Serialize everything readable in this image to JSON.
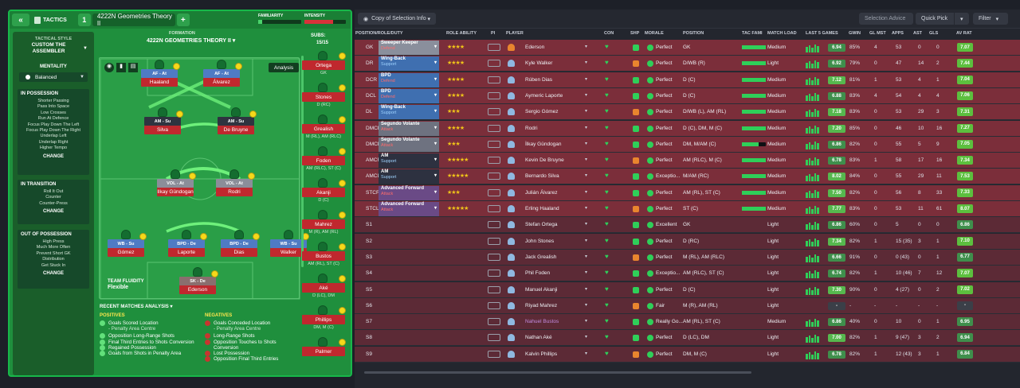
{
  "tactics": {
    "back_label": "«",
    "title": "TACTICS",
    "slot": "1",
    "formation_name": "4222N Geometries Theory II",
    "add_label": "+",
    "familiarity_label": "FAMILIARITY",
    "intensity_label": "INTENSITY",
    "style_label": "TACTICAL STYLE",
    "style_name": "CUSTOM THE ASSEMBLER",
    "mentality_label": "MENTALITY",
    "mentality_value": "Balanced",
    "in_possession": {
      "title": "IN POSSESSION",
      "items": [
        "Shorter Passing",
        "Pass Into Space",
        "Low Crosses",
        "Run At Defence",
        "Focus Play Down The Left",
        "Focus Play Down The Right",
        "Underlap Left",
        "Underlap Right",
        "Higher Tempo"
      ],
      "change": "CHANGE"
    },
    "in_transition": {
      "title": "IN TRANSITION",
      "items": [
        "Roll It Out",
        "Counter",
        "Counter-Press"
      ],
      "change": "CHANGE"
    },
    "out_of_possession": {
      "title": "OUT OF POSSESSION",
      "items": [
        "High Press",
        "Much More Often",
        "Prevent Short GK",
        "Distribution",
        "Get Stuck In"
      ],
      "change": "CHANGE"
    },
    "formation_label": "FORMATION",
    "formation_title": "4222N GEOMETRIES THEORY II",
    "analysis_label": "Analysis",
    "subs_label": "SUBS:",
    "subs_count": "15/15",
    "team_fluidity_label": "TEAM FLUIDITY",
    "team_fluidity_value": "Flexible",
    "pitch_players": [
      {
        "role": "AF - At",
        "name": "Haaland",
        "color": "#4f7bc4"
      },
      {
        "role": "AF - At",
        "name": "Álvarez",
        "color": "#4f7bc4"
      },
      {
        "role": "AM - Su",
        "name": "Silva",
        "color": "#2f3440"
      },
      {
        "role": "AM - Su",
        "name": "De Bruyne",
        "color": "#2f3440"
      },
      {
        "role": "VOL - At",
        "name": "Ilkay Gündogan",
        "color": "#8b8e99"
      },
      {
        "role": "VOL - At",
        "name": "Rodri",
        "color": "#8b8e99"
      },
      {
        "role": "WB - Su",
        "name": "Gómez",
        "color": "#4f7bc4"
      },
      {
        "role": "BPD - De",
        "name": "Laporte",
        "color": "#4f7bc4"
      },
      {
        "role": "BPD - De",
        "name": "Dias",
        "color": "#4f7bc4"
      },
      {
        "role": "WB - Su",
        "name": "Walker",
        "color": "#4f7bc4"
      },
      {
        "role": "SK - De",
        "name": "Ederson",
        "color": "#8a6e6e"
      }
    ],
    "subs": [
      {
        "name": "Ortega",
        "pos": "GK"
      },
      {
        "name": "Stones",
        "pos": "D (RC)"
      },
      {
        "name": "Grealish",
        "pos": "M (RL), AM (RLC)"
      },
      {
        "name": "Foden",
        "pos": "AM (RLC), ST (C)"
      },
      {
        "name": "Akanji",
        "pos": "D (C)"
      },
      {
        "name": "Mahrez",
        "pos": "M (R), AM (RL)"
      },
      {
        "name": "Bustos",
        "pos": "AM (RL), ST (C)"
      },
      {
        "name": "Aké",
        "pos": "D (LC), DM"
      },
      {
        "name": "Phillips",
        "pos": "DM, M (C)"
      },
      {
        "name": "Palmer",
        "pos": ""
      }
    ],
    "analysis": {
      "title": "RECENT MATCHES ANALYSIS",
      "positives_label": "POSITIVES",
      "negatives_label": "NEGATIVES",
      "positives": [
        "Goals Scored Location",
        "- Penalty Area Centre",
        "Opposition Long-Range Shots",
        "Final Third Entries to Shots Conversion",
        "Regained Possession",
        "Goals from Shots in Penalty Area"
      ],
      "negatives": [
        "Goals Conceded Location",
        "- Penalty Area Centre",
        "Long-Range Shots",
        "Opposition Touches to Shots Conversion",
        "Lost Possession",
        "Opposition Final Third Entries"
      ]
    }
  },
  "selection": {
    "view_label": "Copy of Selection Info",
    "advice_label": "Selection Advice",
    "quick_pick_label": "Quick Pick",
    "filter_label": "Filter",
    "columns": [
      "POSITION/ROLE/DUTY",
      "ROLE ABILITY",
      "PI",
      "PLAYER",
      "CON",
      "SHP",
      "MORALE",
      "POSITION",
      "TAC FAMI",
      "MATCH LOAD",
      "LAST 5 GAMES",
      "GWIN",
      "GL MST",
      "APPS",
      "AST",
      "GLS",
      "AV RAT"
    ],
    "rows": [
      {
        "slot": "GK",
        "role": "Sweeper Keeper",
        "duty": "Defend",
        "stars": "★★★★",
        "player": "Ederson",
        "morale": "Perfect",
        "position": "GK",
        "load": "Medium",
        "last5": "6.94",
        "gwin": "85%",
        "glmst": "4",
        "apps": "53",
        "ast": "0",
        "gls": "0",
        "av": "7.07",
        "band": "#7b2e3a",
        "rolebg": "#8a8f9c",
        "ratebox": "#3f8f4c"
      },
      {
        "slot": "DR",
        "role": "Wing-Back",
        "duty": "Support",
        "stars": "★★★★",
        "player": "Kyle Walker",
        "morale": "Perfect",
        "position": "D/WB (R)",
        "load": "Light",
        "last5": "6.92",
        "gwin": "79%",
        "glmst": "0",
        "apps": "47",
        "ast": "14",
        "gls": "2",
        "av": "7.44",
        "band": "#7b2e3a",
        "rolebg": "#3f6fb0",
        "ratebox": "#3f8f4c"
      },
      {
        "slot": "DCR",
        "role": "BPD",
        "duty": "Defend",
        "stars": "★★★★",
        "player": "Rúben Dias",
        "morale": "Perfect",
        "position": "D (C)",
        "load": "Medium",
        "last5": "7.12",
        "gwin": "81%",
        "glmst": "1",
        "apps": "53",
        "ast": "4",
        "gls": "1",
        "av": "7.04",
        "band": "#7b2e3a",
        "rolebg": "#3f6fb0",
        "ratebox": "#56b84e"
      },
      {
        "slot": "DCL",
        "role": "BPD",
        "duty": "Defend",
        "stars": "★★★★",
        "player": "Aymeric Laporte",
        "morale": "Perfect",
        "position": "D (C)",
        "load": "Medium",
        "last5": "6.88",
        "gwin": "83%",
        "glmst": "4",
        "apps": "54",
        "ast": "4",
        "gls": "4",
        "av": "7.06",
        "band": "#7b2e3a",
        "rolebg": "#3f6fb0",
        "ratebox": "#3f8f4c"
      },
      {
        "slot": "DL",
        "role": "Wing-Back",
        "duty": "Support",
        "stars": "★★★",
        "player": "Sergio Gómez",
        "morale": "Perfect",
        "position": "D/WB (L), AM (RL)",
        "load": "Medium",
        "last5": "7.18",
        "gwin": "83%",
        "glmst": "0",
        "apps": "53",
        "ast": "29",
        "gls": "3",
        "av": "7.31",
        "band": "#7b2e3a",
        "rolebg": "#3f6fb0",
        "ratebox": "#56b84e"
      },
      {
        "slot": "DMCR",
        "role": "Segundo Volante",
        "duty": "Attack",
        "stars": "★★★★",
        "player": "Rodri",
        "morale": "Perfect",
        "position": "D (C), DM, M (C)",
        "load": "Medium",
        "last5": "7.20",
        "gwin": "85%",
        "glmst": "0",
        "apps": "46",
        "ast": "10",
        "gls": "16",
        "av": "7.27",
        "band": "#7b2e3a",
        "rolebg": "#6e7280",
        "ratebox": "#56b84e"
      },
      {
        "slot": "DMCL",
        "role": "Segundo Volante",
        "duty": "Attack",
        "stars": "★★★",
        "player": "İlkay Gündogan",
        "morale": "Perfect",
        "position": "DM, M/AM (C)",
        "load": "Medium",
        "last5": "6.86",
        "gwin": "82%",
        "glmst": "0",
        "apps": "55",
        "ast": "5",
        "gls": "9",
        "av": "7.05",
        "band": "#7b2e3a",
        "rolebg": "#6e7280",
        "ratebox": "#3f8f4c"
      },
      {
        "slot": "AMCR",
        "role": "AM",
        "duty": "Support",
        "stars": "★★★★★",
        "player": "Kevin De Bruyne",
        "morale": "Perfect",
        "position": "AM (RLC), M (C)",
        "load": "Medium",
        "last5": "6.78",
        "gwin": "83%",
        "glmst": "1",
        "apps": "58",
        "ast": "17",
        "gls": "16",
        "av": "7.34",
        "band": "#7b2e3a",
        "rolebg": "#2d3140",
        "ratebox": "#3f8f4c"
      },
      {
        "slot": "AMCL",
        "role": "AM",
        "duty": "Support",
        "stars": "★★★★★",
        "player": "Bernardo Silva",
        "morale": "Exceptio...",
        "position": "M/AM (RC)",
        "load": "Medium",
        "last5": "8.02",
        "gwin": "84%",
        "glmst": "0",
        "apps": "55",
        "ast": "29",
        "gls": "11",
        "av": "7.53",
        "band": "#7b2e3a",
        "rolebg": "#2d3140",
        "ratebox": "#56b84e"
      },
      {
        "slot": "STCR",
        "role": "Advanced Forward",
        "duty": "Attack",
        "stars": "★★★",
        "player": "Julián Álvarez",
        "morale": "Perfect",
        "position": "AM (RL), ST (C)",
        "load": "Medium",
        "last5": "7.50",
        "gwin": "82%",
        "glmst": "0",
        "apps": "56",
        "ast": "8",
        "gls": "33",
        "av": "7.33",
        "band": "#7b2e3a",
        "rolebg": "#6a4a86",
        "ratebox": "#56b84e"
      },
      {
        "slot": "STCL",
        "role": "Advanced Forward",
        "duty": "Attack",
        "stars": "★★★★★",
        "player": "Erling Haaland",
        "morale": "Perfect",
        "position": "ST (C)",
        "load": "Medium",
        "last5": "7.77",
        "gwin": "83%",
        "glmst": "0",
        "apps": "53",
        "ast": "11",
        "gls": "61",
        "av": "8.07",
        "band": "#7b2e3a",
        "rolebg": "#6a4a86",
        "ratebox": "#56b84e"
      },
      {
        "slot": "S1",
        "role": "",
        "duty": "",
        "stars": "",
        "player": "Stefan Ortega",
        "morale": "Excellent",
        "position": "GK",
        "load": "Light",
        "last5": "6.86",
        "gwin": "60%",
        "glmst": "0",
        "apps": "5",
        "ast": "0",
        "gls": "0",
        "av": "6.86",
        "band": "#5c2a36",
        "rolebg": "",
        "ratebox": "#3f8f4c"
      },
      {
        "slot": "S2",
        "role": "",
        "duty": "",
        "stars": "",
        "player": "John Stones",
        "morale": "Perfect",
        "position": "D (RC)",
        "load": "Light",
        "last5": "7.34",
        "gwin": "82%",
        "glmst": "1",
        "apps": "15 (35)",
        "ast": "3",
        "gls": "1",
        "av": "7.10",
        "band": "#5c2a36",
        "rolebg": "",
        "ratebox": "#56b84e"
      },
      {
        "slot": "S3",
        "role": "",
        "duty": "",
        "stars": "",
        "player": "Jack Grealish",
        "morale": "Perfect",
        "position": "M (RL), AM (RLC)",
        "load": "Light",
        "last5": "6.66",
        "gwin": "91%",
        "glmst": "0",
        "apps": "0 (43)",
        "ast": "0",
        "gls": "1",
        "av": "6.77",
        "band": "#5c2a36",
        "rolebg": "",
        "ratebox": "#3f8f4c"
      },
      {
        "slot": "S4",
        "role": "",
        "duty": "",
        "stars": "",
        "player": "Phil Foden",
        "morale": "Exceptio...",
        "position": "AM (RLC), ST (C)",
        "load": "Light",
        "last5": "6.74",
        "gwin": "82%",
        "glmst": "1",
        "apps": "10 (46)",
        "ast": "7",
        "gls": "12",
        "av": "7.07",
        "band": "#5c2a36",
        "rolebg": "",
        "ratebox": "#3f8f4c"
      },
      {
        "slot": "S5",
        "role": "",
        "duty": "",
        "stars": "",
        "player": "Manuel Akanji",
        "morale": "Perfect",
        "position": "D (C)",
        "load": "Light",
        "last5": "7.30",
        "gwin": "90%",
        "glmst": "0",
        "apps": "4 (27)",
        "ast": "0",
        "gls": "2",
        "av": "7.02",
        "band": "#5c2a36",
        "rolebg": "",
        "ratebox": "#56b84e"
      },
      {
        "slot": "S6",
        "role": "",
        "duty": "",
        "stars": "",
        "player": "Riyad Mahrez",
        "morale": "Fair",
        "position": "M (R), AM (RL)",
        "load": "Light",
        "last5": "-",
        "gwin": "-",
        "glmst": "-",
        "apps": "-",
        "ast": "-",
        "gls": "-",
        "av": "-",
        "band": "#5c2a36",
        "rolebg": "",
        "ratebox": "#3b3f48"
      },
      {
        "slot": "S7",
        "role": "",
        "duty": "",
        "stars": "",
        "player": "Nahuel Bustos",
        "morale": "Really Go...",
        "position": "AM (RL), ST (C)",
        "load": "Medium",
        "last5": "6.86",
        "gwin": "40%",
        "glmst": "0",
        "apps": "10",
        "ast": "0",
        "gls": "1",
        "av": "6.95",
        "band": "#5c2a36",
        "rolebg": "",
        "ratebox": "#3f8f4c"
      },
      {
        "slot": "S8",
        "role": "",
        "duty": "",
        "stars": "",
        "player": "Nathan Aké",
        "morale": "Perfect",
        "position": "D (LC), DM",
        "load": "Light",
        "last5": "7.00",
        "gwin": "82%",
        "glmst": "1",
        "apps": "9 (47)",
        "ast": "3",
        "gls": "2",
        "av": "6.94",
        "band": "#5c2a36",
        "rolebg": "",
        "ratebox": "#56b84e"
      },
      {
        "slot": "S9",
        "role": "",
        "duty": "",
        "stars": "",
        "player": "Kalvin Phillips",
        "morale": "Perfect",
        "position": "DM, M (C)",
        "load": "Light",
        "last5": "6.78",
        "gwin": "82%",
        "glmst": "1",
        "apps": "12 (43)",
        "ast": "3",
        "gls": "1",
        "av": "6.84",
        "band": "#5c2a36",
        "rolebg": "",
        "ratebox": "#3f8f4c"
      }
    ]
  }
}
